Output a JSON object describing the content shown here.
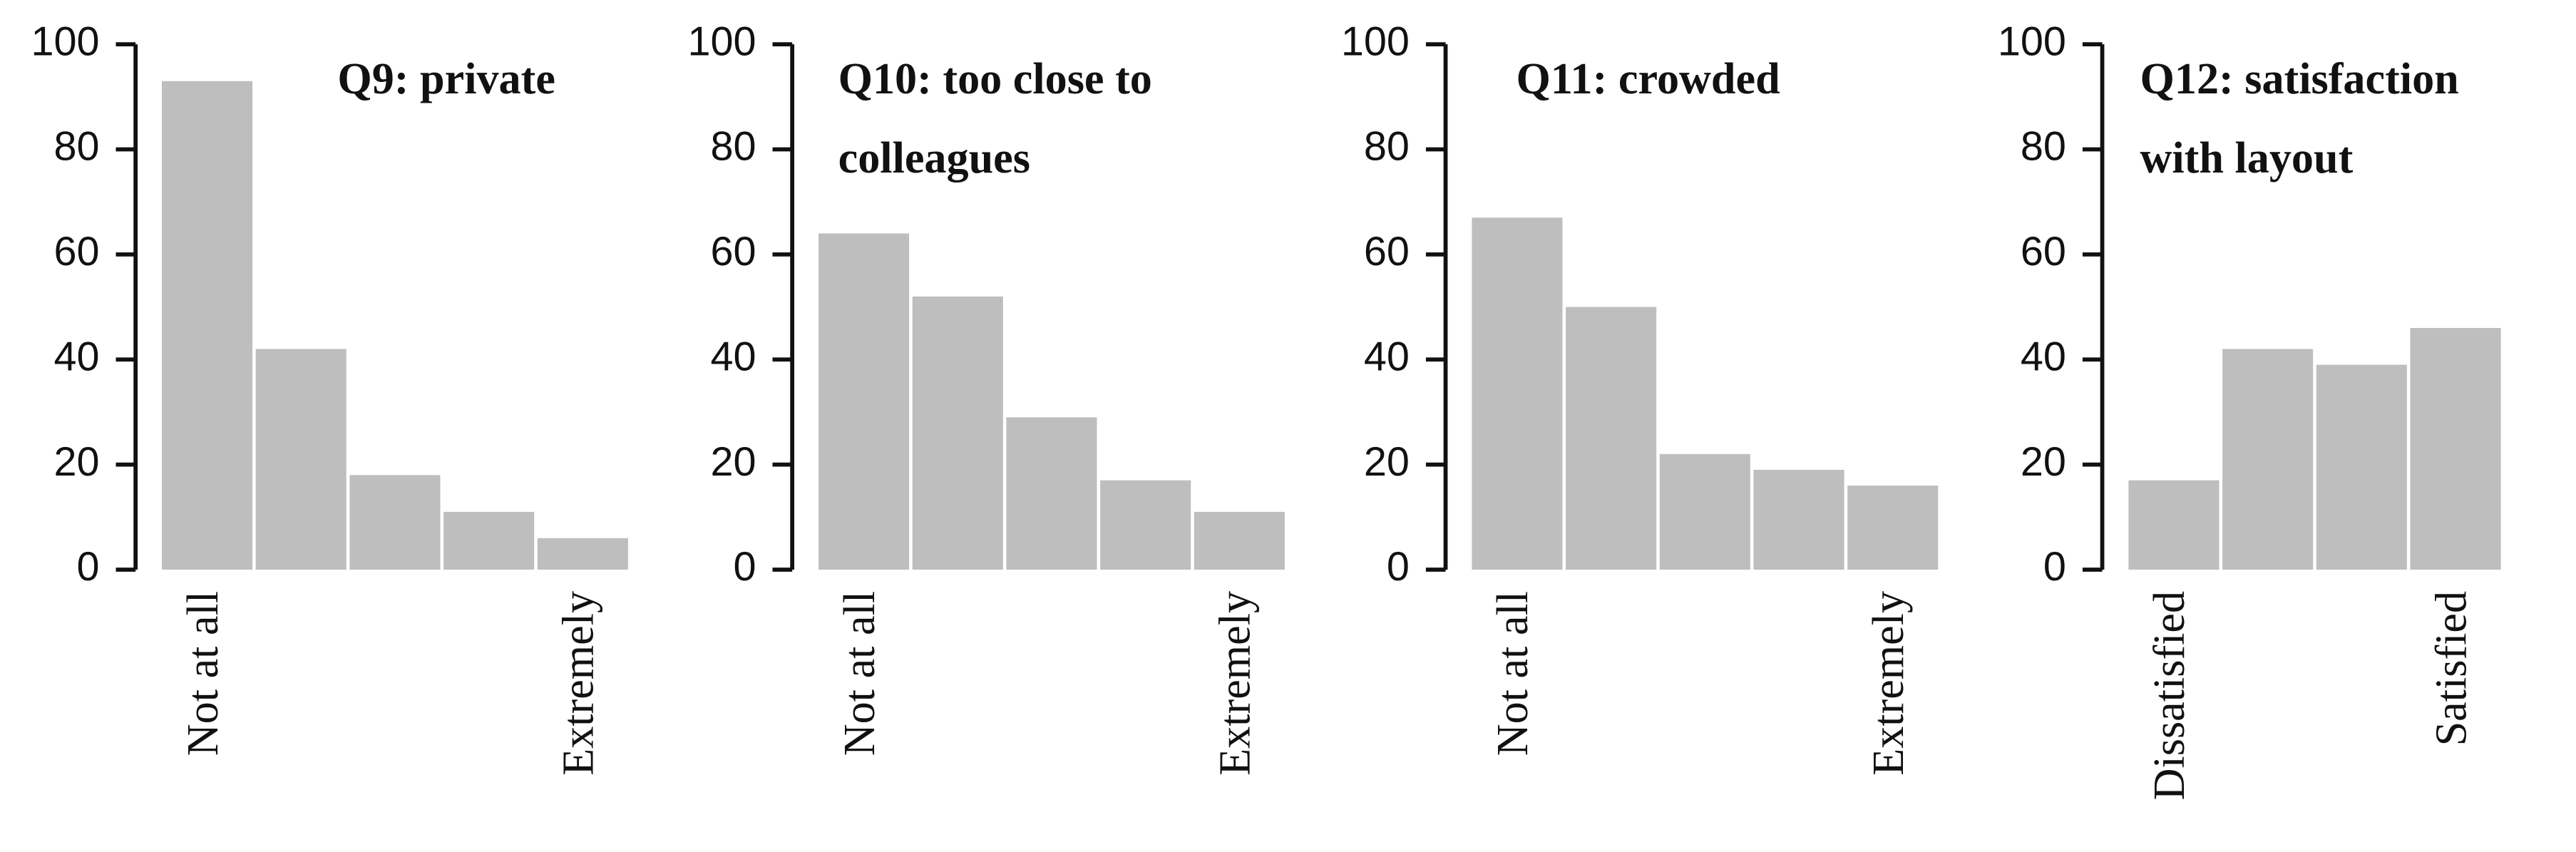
{
  "chart_data": [
    {
      "type": "bar",
      "title": "Q9: private",
      "categories": [
        "Not at all",
        null,
        null,
        null,
        "Extremely"
      ],
      "values": [
        93,
        42,
        18,
        11,
        6
      ],
      "color": "#bebebe",
      "ylim": [
        0,
        100
      ],
      "yticks": [
        0,
        20,
        40,
        60,
        80,
        100
      ]
    },
    {
      "type": "bar",
      "title": "Q10: too close to colleagues",
      "categories": [
        "Not at all",
        null,
        null,
        null,
        "Extremely"
      ],
      "values": [
        64,
        52,
        29,
        17,
        11
      ],
      "color": "#bebebe",
      "ylim": [
        0,
        100
      ],
      "yticks": [
        0,
        20,
        40,
        60,
        80,
        100
      ]
    },
    {
      "type": "bar",
      "title": "Q11: crowded",
      "categories": [
        "Not at all",
        null,
        null,
        null,
        "Extremely"
      ],
      "values": [
        67,
        50,
        22,
        19,
        16
      ],
      "color": "#bebebe",
      "ylim": [
        0,
        100
      ],
      "yticks": [
        0,
        20,
        40,
        60,
        80,
        100
      ]
    },
    {
      "type": "bar",
      "title": "Q12: satisfaction with layout",
      "categories": [
        "Dissatisfied",
        null,
        null,
        "Satisfied"
      ],
      "values": [
        17,
        42,
        39,
        46
      ],
      "color": "#bebebe",
      "ylim": [
        0,
        100
      ],
      "yticks": [
        0,
        20,
        40,
        60,
        80,
        100
      ]
    }
  ]
}
